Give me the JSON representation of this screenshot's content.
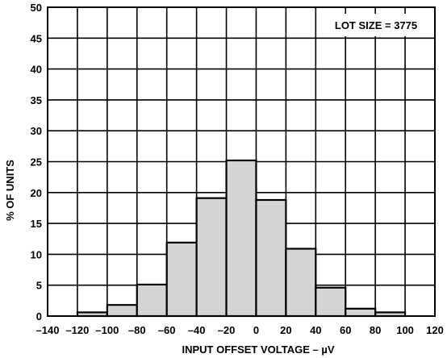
{
  "chart_data": {
    "type": "bar",
    "title": "",
    "xlabel": "INPUT OFFSET VOLTAGE – µV",
    "ylabel": "% OF UNITS",
    "annotation": "LOT SIZE = 3775",
    "legend_position": "top-right",
    "grid": true,
    "xlim": [
      -140,
      120
    ],
    "ylim": [
      0,
      50
    ],
    "x_ticks": [
      -140,
      -120,
      -100,
      -80,
      -60,
      -40,
      -20,
      0,
      20,
      40,
      60,
      80,
      100,
      120
    ],
    "y_ticks": [
      0,
      5,
      10,
      15,
      20,
      25,
      30,
      35,
      40,
      45,
      50
    ],
    "x_tick_labels": [
      "–140",
      "–120",
      "–100",
      "–80",
      "–60",
      "–40",
      "–20",
      "0",
      "20",
      "40",
      "60",
      "80",
      "100",
      "120"
    ],
    "bin_width": 20,
    "bins": [
      {
        "x_start": -120,
        "x_end": -100,
        "value": 0.6
      },
      {
        "x_start": -100,
        "x_end": -80,
        "value": 1.8
      },
      {
        "x_start": -80,
        "x_end": -60,
        "value": 5.1
      },
      {
        "x_start": -60,
        "x_end": -40,
        "value": 11.9
      },
      {
        "x_start": -40,
        "x_end": -20,
        "value": 19.1
      },
      {
        "x_start": -20,
        "x_end": 0,
        "value": 25.2
      },
      {
        "x_start": 0,
        "x_end": 20,
        "value": 18.8
      },
      {
        "x_start": 20,
        "x_end": 40,
        "value": 10.9
      },
      {
        "x_start": 40,
        "x_end": 60,
        "value": 4.6
      },
      {
        "x_start": 60,
        "x_end": 80,
        "value": 1.2
      },
      {
        "x_start": 80,
        "x_end": 100,
        "value": 0.6
      }
    ],
    "colors": {
      "bar_fill": "#d4d4d4",
      "bar_stroke": "#000000",
      "grid": "#000000",
      "background": "#ffffff"
    }
  }
}
